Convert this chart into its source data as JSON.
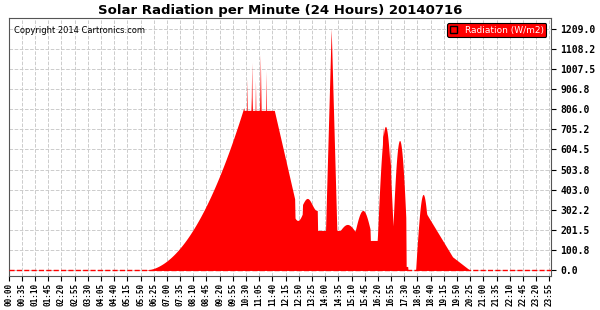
{
  "title": "Solar Radiation per Minute (24 Hours) 20140716",
  "copyright": "Copyright 2014 Cartronics.com",
  "legend_label": "Radiation (W/m2)",
  "yticks": [
    0.0,
    100.8,
    201.5,
    302.2,
    403.0,
    503.8,
    604.5,
    705.2,
    806.0,
    906.8,
    1007.5,
    1108.2,
    1209.0
  ],
  "ylim": [
    0.0,
    1209.0
  ],
  "bg_color": "#ffffff",
  "fill_color": "#ff0000",
  "dashed_zero_color": "#ff0000",
  "xtick_interval_minutes": 35,
  "total_minutes": 1440,
  "sunrise_min": 355,
  "sunset_min": 1225
}
